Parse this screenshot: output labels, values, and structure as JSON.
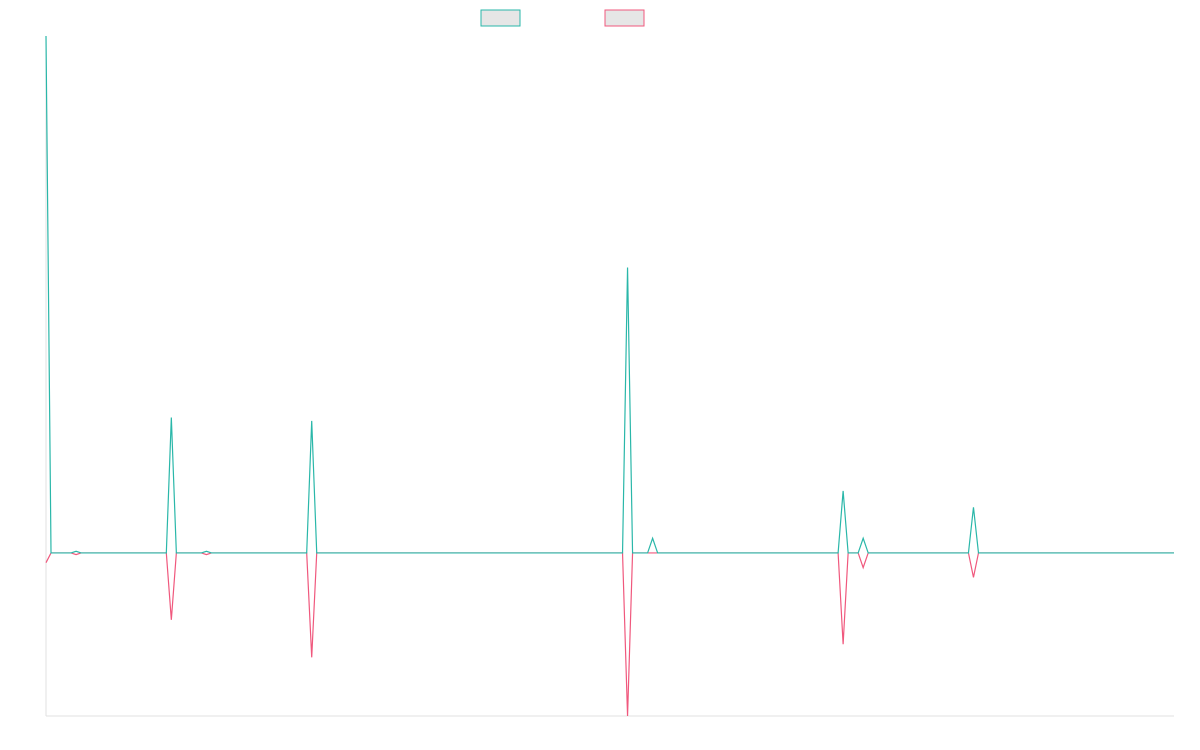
{
  "chart_data": {
    "type": "line",
    "x": [
      0,
      1,
      5,
      6,
      7,
      24,
      25,
      26,
      31,
      32,
      33,
      52,
      53,
      54,
      115,
      116,
      117,
      120,
      121,
      122,
      158,
      159,
      160,
      162,
      163,
      164,
      184,
      185,
      186,
      225
    ],
    "series": [
      {
        "color": "#f0587d",
        "values": [
          -0.6,
          0,
          0,
          -0.1,
          0,
          0,
          -4.1,
          0,
          0,
          -0.1,
          0,
          0,
          -6.4,
          0,
          0,
          -10,
          0,
          0,
          0,
          0,
          0,
          -5.6,
          0,
          0,
          -0.9,
          0,
          0,
          -1.5,
          0,
          0
        ]
      },
      {
        "color": "#2ab7a9",
        "values": [
          31.7,
          0,
          0,
          0.1,
          0,
          0,
          8.3,
          0,
          0,
          0.1,
          0,
          0,
          8.1,
          0,
          0,
          17.5,
          0,
          0,
          0.9,
          0,
          0,
          3.8,
          0,
          0,
          0.9,
          0,
          0,
          2.8,
          0,
          0
        ]
      }
    ],
    "xlim": [
      0,
      225
    ],
    "ylim": [
      -10,
      31.7
    ]
  }
}
